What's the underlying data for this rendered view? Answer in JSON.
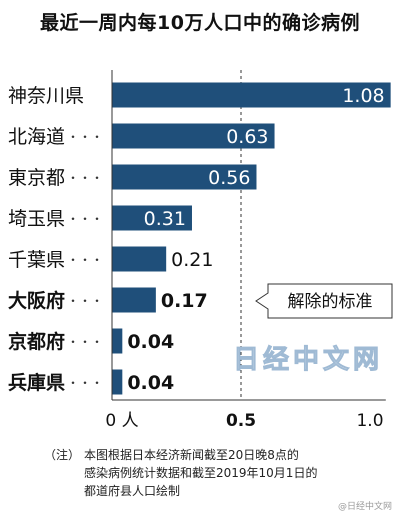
{
  "title": "最近一周内每10万人口中的确诊病例",
  "chart_data": {
    "type": "bar",
    "orientation": "horizontal",
    "categories": [
      "神奈川県",
      "北海道",
      "東京都",
      "埼玉県",
      "千葉県",
      "大阪府",
      "京都府",
      "兵庫県"
    ],
    "category_leaders": "・・・",
    "values": [
      1.08,
      0.63,
      0.56,
      0.31,
      0.21,
      0.17,
      0.04,
      0.04
    ],
    "value_labels": [
      "1.08",
      "0.63",
      "0.56",
      "0.31",
      "0.21",
      "0.17",
      "0.04",
      "0.04"
    ],
    "bold_categories": [
      "大阪府",
      "京都府",
      "兵庫県"
    ],
    "xlim": [
      0,
      1.1
    ],
    "xticks": [
      {
        "value": 0,
        "label": "0 人"
      },
      {
        "value": 0.5,
        "label": "0.5"
      },
      {
        "value": 1.0,
        "label": "1.0"
      }
    ],
    "reference_line": {
      "value": 0.5,
      "label": "解除的标准"
    },
    "bar_color": "#1f4f7a",
    "grid": false
  },
  "note": {
    "tag": "（注）",
    "lines": [
      "本图根据日本经济新闻截至20日晚8点的",
      "感染病例统计数据和截至2019年10月1日的",
      "都道府县人口绘制"
    ]
  },
  "watermarks": [
    "日经中文网",
    "@日经中文网"
  ]
}
